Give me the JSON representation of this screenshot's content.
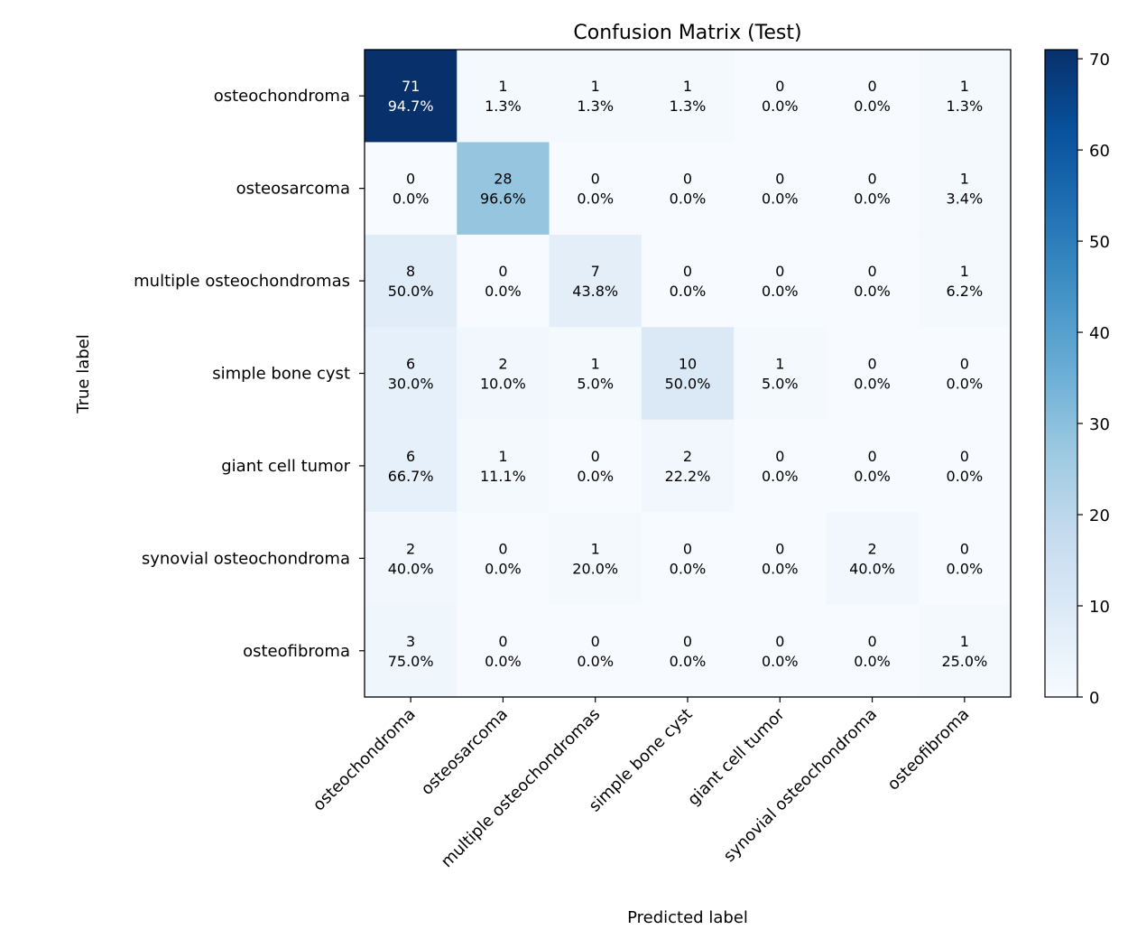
{
  "chart_data": {
    "type": "heatmap",
    "title": "Confusion Matrix (Test)",
    "xlabel": "Predicted label",
    "ylabel": "True label",
    "x_categories": [
      "osteochondroma",
      "osteosarcoma",
      "multiple osteochondromas",
      "simple bone cyst",
      "giant cell tumor",
      "synovial osteochondroma",
      "osteofibroma"
    ],
    "y_categories": [
      "osteochondroma",
      "osteosarcoma",
      "multiple osteochondromas",
      "simple bone cyst",
      "giant cell tumor",
      "synovial osteochondroma",
      "osteofibroma"
    ],
    "counts": [
      [
        71,
        1,
        1,
        1,
        0,
        0,
        1
      ],
      [
        0,
        28,
        0,
        0,
        0,
        0,
        1
      ],
      [
        8,
        0,
        7,
        0,
        0,
        0,
        1
      ],
      [
        6,
        2,
        1,
        10,
        1,
        0,
        0
      ],
      [
        6,
        1,
        0,
        2,
        0,
        0,
        0
      ],
      [
        2,
        0,
        1,
        0,
        0,
        2,
        0
      ],
      [
        3,
        0,
        0,
        0,
        0,
        0,
        1
      ]
    ],
    "percents": [
      [
        "94.7%",
        "1.3%",
        "1.3%",
        "1.3%",
        "0.0%",
        "0.0%",
        "1.3%"
      ],
      [
        "0.0%",
        "96.6%",
        "0.0%",
        "0.0%",
        "0.0%",
        "0.0%",
        "3.4%"
      ],
      [
        "50.0%",
        "0.0%",
        "43.8%",
        "0.0%",
        "0.0%",
        "0.0%",
        "6.2%"
      ],
      [
        "30.0%",
        "10.0%",
        "5.0%",
        "50.0%",
        "5.0%",
        "0.0%",
        "0.0%"
      ],
      [
        "66.7%",
        "11.1%",
        "0.0%",
        "22.2%",
        "0.0%",
        "0.0%",
        "0.0%"
      ],
      [
        "40.0%",
        "0.0%",
        "20.0%",
        "0.0%",
        "0.0%",
        "40.0%",
        "0.0%"
      ],
      [
        "75.0%",
        "0.0%",
        "0.0%",
        "0.0%",
        "0.0%",
        "0.0%",
        "25.0%"
      ]
    ],
    "colormap": "Blues",
    "color_range": [
      0,
      71
    ],
    "colorbar_ticks": [
      0,
      10,
      20,
      30,
      40,
      50,
      60,
      70
    ]
  }
}
